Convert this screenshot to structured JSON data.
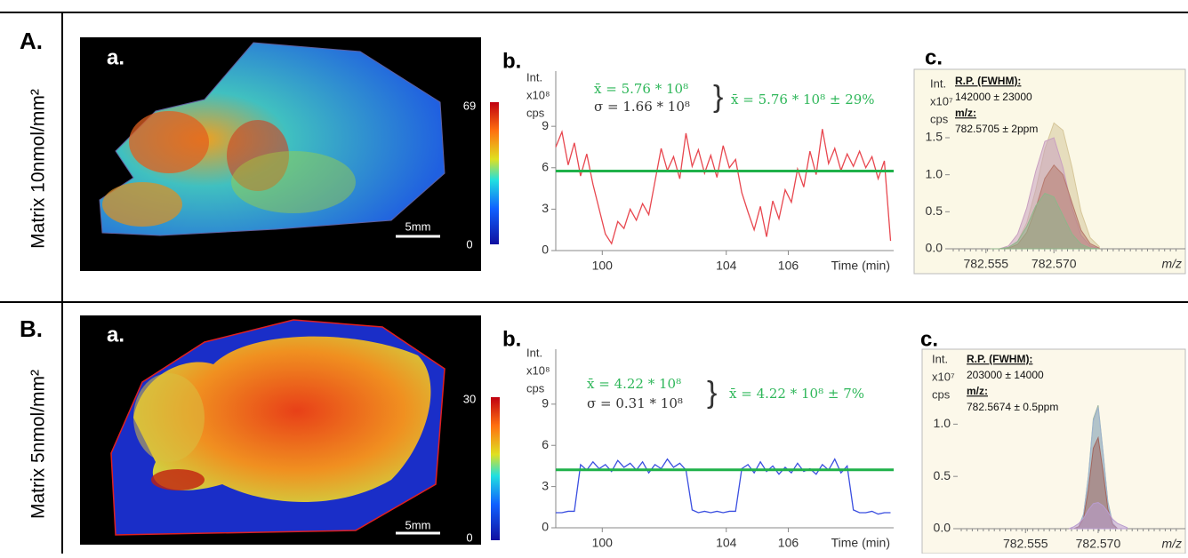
{
  "rows": [
    {
      "label": "A.",
      "side_label": "Matrix 10nmol/mm²",
      "image": {
        "label": "a.",
        "colorbar_max": "69",
        "colorbar_min": "0",
        "scale_bar": "5mm"
      }
    },
    {
      "label": "B.",
      "side_label": "Matrix 5nmol/mm²",
      "image": {
        "label": "a.",
        "colorbar_max": "30",
        "colorbar_min": "0",
        "scale_bar": "5mm"
      }
    }
  ],
  "chart_data": [
    {
      "type": "line",
      "label": "b.",
      "y_label": [
        "Int.",
        "x10⁸",
        "cps"
      ],
      "x_label": "Time (min)",
      "x": [
        98.5,
        98.7,
        98.9,
        99.1,
        99.3,
        99.5,
        99.7,
        99.9,
        100.1,
        100.3,
        100.5,
        100.7,
        100.9,
        101.1,
        101.3,
        101.5,
        101.7,
        101.9,
        102.1,
        102.3,
        102.5,
        102.7,
        102.9,
        103.1,
        103.3,
        103.5,
        103.7,
        103.9,
        104.1,
        104.3,
        104.5,
        104.7,
        104.9,
        105.1,
        105.3,
        105.5,
        105.7,
        105.9,
        106.1,
        106.3,
        106.5,
        106.7,
        106.9,
        107.1,
        107.3,
        107.5,
        107.7,
        107.9,
        108.1,
        108.3,
        108.5,
        108.7,
        108.9,
        109.1,
        109.3
      ],
      "series": [
        {
          "color": "#e8474f",
          "values": [
            7.5,
            8.6,
            6.2,
            7.8,
            5.4,
            7.0,
            4.8,
            3.0,
            1.2,
            0.5,
            2.1,
            1.6,
            3.0,
            2.2,
            3.4,
            2.6,
            5.0,
            7.4,
            5.8,
            6.8,
            5.2,
            8.5,
            6.1,
            7.3,
            5.6,
            6.9,
            5.3,
            7.6,
            6.0,
            6.6,
            4.2,
            2.8,
            1.5,
            3.2,
            1.0,
            3.6,
            2.3,
            4.4,
            3.5,
            5.9,
            4.6,
            7.2,
            5.5,
            8.8,
            6.3,
            7.4,
            5.8,
            7.0,
            6.1,
            7.2,
            6.0,
            6.8,
            5.2,
            6.5,
            0.7
          ]
        }
      ],
      "mean_line": {
        "value": 5.76,
        "color": "#1fb14a"
      },
      "annotations": [
        {
          "text": "x̄ = 5.76 * 10⁸",
          "color": "#2fb75a"
        },
        {
          "text": "σ = 1.66 * 10⁸",
          "color": "#333333"
        },
        {
          "text": "x̄ = 5.76 * 10⁸ ± 29%",
          "color": "#2fb75a"
        }
      ],
      "xlim": [
        98.5,
        109.4
      ],
      "ylim": [
        0,
        13
      ],
      "xticks": [
        100,
        104,
        106
      ],
      "yticks": [
        0,
        3,
        6,
        9
      ]
    },
    {
      "type": "area",
      "label": "c.",
      "y_label": [
        "Int.",
        "x10⁷",
        "cps"
      ],
      "x_label": "m/z",
      "background": "#fbf8e6",
      "x": [
        782.556,
        782.558,
        782.56,
        782.562,
        782.564,
        782.566,
        782.568,
        782.57,
        782.572,
        782.574,
        782.576,
        782.578,
        782.58
      ],
      "series": [
        {
          "color": "#d6c79a",
          "values": [
            0,
            0,
            0.02,
            0.1,
            0.35,
            0.8,
            1.35,
            1.7,
            1.6,
            1.1,
            0.5,
            0.15,
            0.03
          ]
        },
        {
          "color": "#c9a0c0",
          "values": [
            0,
            0,
            0.04,
            0.2,
            0.55,
            1.05,
            1.45,
            1.5,
            1.1,
            0.55,
            0.18,
            0.04,
            0
          ]
        },
        {
          "color": "#b77a6e",
          "values": [
            0,
            0,
            0.01,
            0.06,
            0.22,
            0.55,
            0.95,
            1.13,
            1.0,
            0.62,
            0.25,
            0.07,
            0.01
          ]
        },
        {
          "color": "#8fb58a",
          "values": [
            0,
            0,
            0.02,
            0.1,
            0.3,
            0.58,
            0.75,
            0.7,
            0.45,
            0.2,
            0.06,
            0.01,
            0
          ]
        }
      ],
      "annotations": [
        {
          "text": "R.P. (FWHM):",
          "color": "#111111"
        },
        {
          "text": "142000 ± 23000",
          "color": "#111111"
        },
        {
          "text": "m/z:",
          "color": "#111111"
        },
        {
          "text": "782.5705 ± 2ppm",
          "color": "#111111"
        }
      ],
      "xlim": [
        782.547,
        782.599
      ],
      "ylim": [
        0,
        2.4
      ],
      "xticks": [
        782.555,
        {
          "value": 782.57,
          "label": "782.570"
        }
      ],
      "yticks": [
        {
          "value": 0,
          "label": "0.0"
        },
        0.5,
        {
          "value": 1,
          "label": "1.0"
        },
        1.5
      ]
    },
    {
      "type": "line",
      "label": "b.",
      "y_label": [
        "Int.",
        "x10⁸",
        "cps"
      ],
      "x_label": "Time (min)",
      "x": [
        98.5,
        98.7,
        98.9,
        99.1,
        99.3,
        99.5,
        99.7,
        99.9,
        100.1,
        100.3,
        100.5,
        100.7,
        100.9,
        101.1,
        101.3,
        101.5,
        101.7,
        101.9,
        102.1,
        102.3,
        102.5,
        102.7,
        102.9,
        103.1,
        103.3,
        103.5,
        103.7,
        103.9,
        104.1,
        104.3,
        104.5,
        104.7,
        104.9,
        105.1,
        105.3,
        105.5,
        105.7,
        105.9,
        106.1,
        106.3,
        106.5,
        106.7,
        106.9,
        107.1,
        107.3,
        107.5,
        107.7,
        107.9,
        108.1,
        108.3,
        108.5,
        108.7,
        108.9,
        109.1,
        109.3
      ],
      "series": [
        {
          "color": "#3b4fe0",
          "values": [
            1.1,
            1.1,
            1.2,
            1.2,
            4.6,
            4.2,
            4.8,
            4.3,
            4.6,
            4.1,
            4.9,
            4.4,
            4.7,
            4.2,
            4.8,
            4.0,
            4.6,
            4.3,
            5.0,
            4.4,
            4.7,
            4.2,
            1.3,
            1.1,
            1.2,
            1.1,
            1.2,
            1.1,
            1.2,
            1.2,
            4.3,
            4.6,
            4.0,
            4.8,
            4.1,
            4.5,
            3.9,
            4.4,
            4.0,
            4.7,
            4.1,
            4.3,
            3.9,
            4.6,
            4.2,
            5.0,
            4.0,
            4.5,
            1.3,
            1.1,
            1.1,
            1.2,
            1.0,
            1.1,
            1.1
          ]
        }
      ],
      "mean_line": {
        "value": 4.22,
        "color": "#1fb14a"
      },
      "annotations": [
        {
          "text": "x̄ = 4.22 * 10⁸",
          "color": "#2fb75a"
        },
        {
          "text": "σ = 0.31 * 10⁸",
          "color": "#333333"
        },
        {
          "text": "x̄ = 4.22 * 10⁸ ± 7%",
          "color": "#2fb75a"
        }
      ],
      "xlim": [
        98.5,
        109.4
      ],
      "ylim": [
        0,
        13
      ],
      "xticks": [
        100,
        104,
        106
      ],
      "yticks": [
        0,
        3,
        6,
        9
      ]
    },
    {
      "type": "area",
      "label": "c.",
      "y_label": [
        "Int.",
        "x10⁷",
        "cps"
      ],
      "x_label": "m/z",
      "background": "#fcf8ea",
      "x": [
        782.564,
        782.565,
        782.566,
        782.567,
        782.568,
        782.569,
        782.57,
        782.571,
        782.572,
        782.573,
        782.574,
        782.575,
        782.576
      ],
      "series": [
        {
          "color": "#9fb6a0",
          "values": [
            0,
            0,
            0.02,
            0.14,
            0.51,
            1.05,
            1.18,
            0.74,
            0.26,
            0.05,
            0,
            0,
            0
          ]
        },
        {
          "color": "#9fb4cf",
          "values": [
            0,
            0,
            0.02,
            0.14,
            0.5,
            1.03,
            1.16,
            0.73,
            0.25,
            0.05,
            0,
            0,
            0
          ]
        },
        {
          "color": "#a3665e",
          "values": [
            0,
            0,
            0.02,
            0.1,
            0.38,
            0.77,
            0.87,
            0.55,
            0.19,
            0.04,
            0,
            0,
            0
          ]
        },
        {
          "color": "#b99ccf",
          "values": [
            0,
            0.02,
            0.05,
            0.1,
            0.18,
            0.24,
            0.25,
            0.22,
            0.16,
            0.09,
            0.05,
            0.03,
            0.01
          ]
        }
      ],
      "annotations": [
        {
          "text": "R.P. (FWHM):",
          "color": "#111111"
        },
        {
          "text": "203000 ± 14000",
          "color": "#111111"
        },
        {
          "text": "m/z:",
          "color": "#111111"
        },
        {
          "text": "782.5674 ± 0.5ppm",
          "color": "#111111"
        }
      ],
      "xlim": [
        782.541,
        782.588
      ],
      "ylim": [
        0,
        1.7
      ],
      "xticks": [
        782.555,
        {
          "value": 782.57,
          "label": "782.570"
        }
      ],
      "yticks": [
        {
          "value": 0,
          "label": "0.0"
        },
        0.5,
        {
          "value": 1,
          "label": "1.0"
        }
      ]
    }
  ]
}
